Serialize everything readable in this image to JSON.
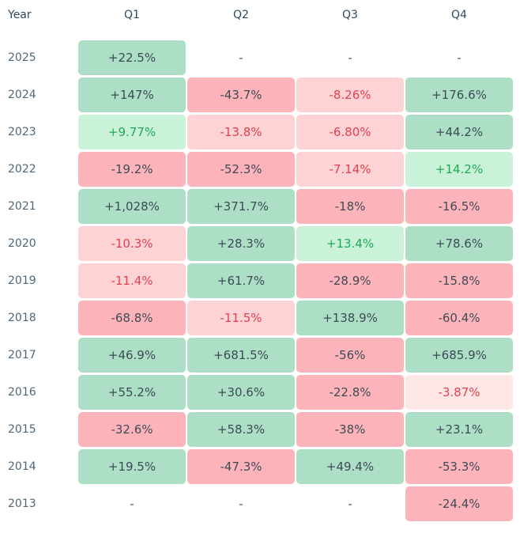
{
  "chart_data": {
    "type": "table",
    "columns": [
      "Year",
      "Q1",
      "Q2",
      "Q3",
      "Q4"
    ],
    "rows": [
      {
        "year": "2025",
        "cells": [
          {
            "text": "+22.5%",
            "value": 22.5
          },
          {
            "text": "-",
            "value": null
          },
          {
            "text": "-",
            "value": null
          },
          {
            "text": "-",
            "value": null
          }
        ]
      },
      {
        "year": "2024",
        "cells": [
          {
            "text": "+147%",
            "value": 147
          },
          {
            "text": "-43.7%",
            "value": -43.7
          },
          {
            "text": "-8.26%",
            "value": -8.26
          },
          {
            "text": "+176.6%",
            "value": 176.6
          }
        ]
      },
      {
        "year": "2023",
        "cells": [
          {
            "text": "+9.77%",
            "value": 9.77
          },
          {
            "text": "-13.8%",
            "value": -13.8
          },
          {
            "text": "-6.80%",
            "value": -6.8
          },
          {
            "text": "+44.2%",
            "value": 44.2
          }
        ]
      },
      {
        "year": "2022",
        "cells": [
          {
            "text": "-19.2%",
            "value": -19.2
          },
          {
            "text": "-52.3%",
            "value": -52.3
          },
          {
            "text": "-7.14%",
            "value": -7.14
          },
          {
            "text": "+14.2%",
            "value": 14.2
          }
        ]
      },
      {
        "year": "2021",
        "cells": [
          {
            "text": "+1,028%",
            "value": 1028
          },
          {
            "text": "+371.7%",
            "value": 371.7
          },
          {
            "text": "-18%",
            "value": -18
          },
          {
            "text": "-16.5%",
            "value": -16.5
          }
        ]
      },
      {
        "year": "2020",
        "cells": [
          {
            "text": "-10.3%",
            "value": -10.3
          },
          {
            "text": "+28.3%",
            "value": 28.3
          },
          {
            "text": "+13.4%",
            "value": 13.4
          },
          {
            "text": "+78.6%",
            "value": 78.6
          }
        ]
      },
      {
        "year": "2019",
        "cells": [
          {
            "text": "-11.4%",
            "value": -11.4
          },
          {
            "text": "+61.7%",
            "value": 61.7
          },
          {
            "text": "-28.9%",
            "value": -28.9
          },
          {
            "text": "-15.8%",
            "value": -15.8
          }
        ]
      },
      {
        "year": "2018",
        "cells": [
          {
            "text": "-68.8%",
            "value": -68.8
          },
          {
            "text": "-11.5%",
            "value": -11.5
          },
          {
            "text": "+138.9%",
            "value": 138.9
          },
          {
            "text": "-60.4%",
            "value": -60.4
          }
        ]
      },
      {
        "year": "2017",
        "cells": [
          {
            "text": "+46.9%",
            "value": 46.9
          },
          {
            "text": "+681.5%",
            "value": 681.5
          },
          {
            "text": "-56%",
            "value": -56
          },
          {
            "text": "+685.9%",
            "value": 685.9
          }
        ]
      },
      {
        "year": "2016",
        "cells": [
          {
            "text": "+55.2%",
            "value": 55.2
          },
          {
            "text": "+30.6%",
            "value": 30.6
          },
          {
            "text": "-22.8%",
            "value": -22.8
          },
          {
            "text": "-3.87%",
            "value": -3.87
          }
        ]
      },
      {
        "year": "2015",
        "cells": [
          {
            "text": "-32.6%",
            "value": -32.6
          },
          {
            "text": "+58.3%",
            "value": 58.3
          },
          {
            "text": "-38%",
            "value": -38
          },
          {
            "text": "+23.1%",
            "value": 23.1
          }
        ]
      },
      {
        "year": "2014",
        "cells": [
          {
            "text": "+19.5%",
            "value": 19.5
          },
          {
            "text": "-47.3%",
            "value": -47.3
          },
          {
            "text": "+49.4%",
            "value": 49.4
          },
          {
            "text": "-53.3%",
            "value": -53.3
          }
        ]
      },
      {
        "year": "2013",
        "cells": [
          {
            "text": "-",
            "value": null
          },
          {
            "text": "-",
            "value": null
          },
          {
            "text": "-",
            "value": null
          },
          {
            "text": "-24.4%",
            "value": -24.4
          }
        ]
      }
    ],
    "colors": {
      "positive_strong": "#addfc6",
      "positive_weak": "#c9f2d8",
      "positive_weak_text": "#1faa55",
      "negative_strong": "#fcb4ba",
      "negative_mid": "#fdd3d6",
      "negative_light": "#fde6e6",
      "negative_text": "#e3414f",
      "default_text": "#3c4c58"
    }
  }
}
